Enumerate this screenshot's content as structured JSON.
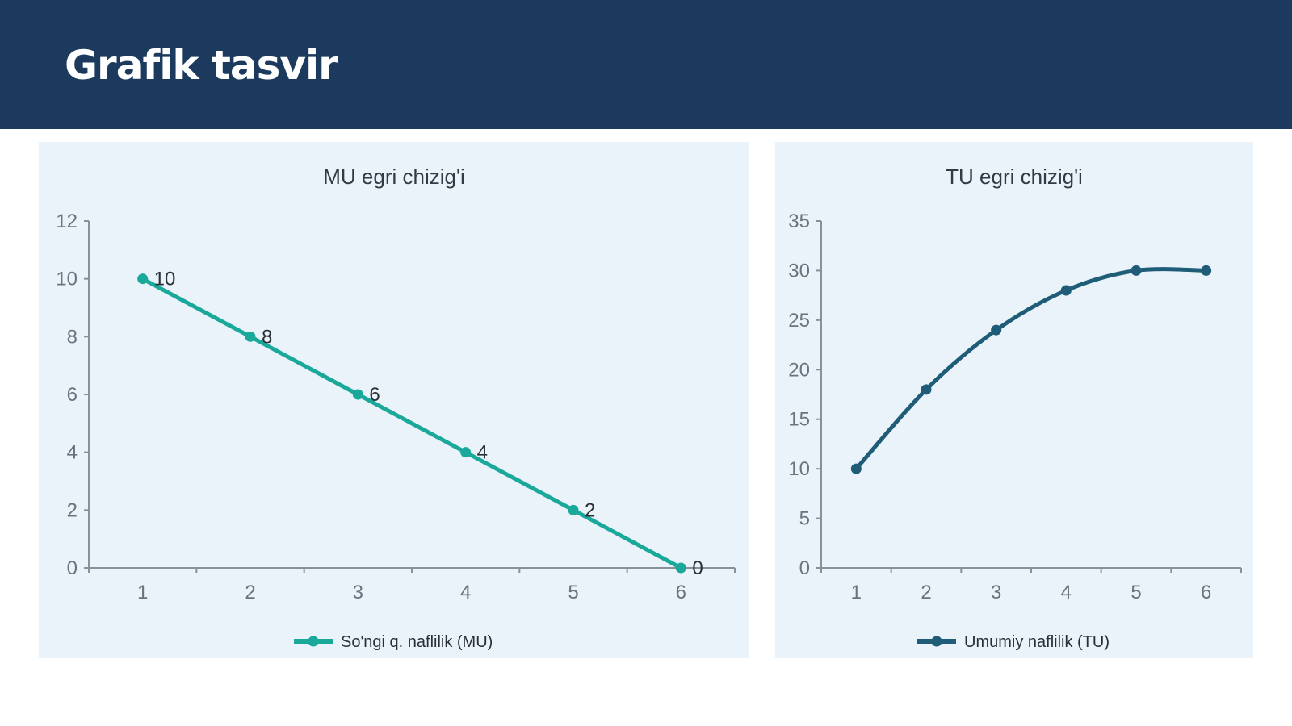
{
  "header": {
    "title": "Grafik tasvir"
  },
  "colors": {
    "header_bg": "#1b3a5e",
    "mu": "#1aa89a",
    "tu": "#1f5c78",
    "panel_bg": "#eaf3f9"
  },
  "chart_data": [
    {
      "type": "line",
      "title": "MU egri chizig'i",
      "categories": [
        "1",
        "2",
        "3",
        "4",
        "5",
        "6"
      ],
      "series": [
        {
          "name": "So'ngi q. naflilik (MU)",
          "values": [
            10,
            8,
            6,
            4,
            2,
            0
          ]
        }
      ],
      "ylim": [
        0,
        12
      ],
      "yticks": [
        0,
        2,
        4,
        6,
        8,
        10,
        12
      ],
      "data_labels": true,
      "legend": "bottom",
      "color": "#1aa89a"
    },
    {
      "type": "line",
      "title": "TU egri chizig'i",
      "categories": [
        "1",
        "2",
        "3",
        "4",
        "5",
        "6"
      ],
      "series": [
        {
          "name": "Umumiy naflilik (TU)",
          "values": [
            10,
            18,
            24,
            28,
            30,
            30
          ]
        }
      ],
      "ylim": [
        0,
        35
      ],
      "yticks": [
        0,
        5,
        10,
        15,
        20,
        25,
        30,
        35
      ],
      "data_labels": false,
      "smooth": true,
      "legend": "bottom",
      "color": "#1f5c78"
    }
  ]
}
